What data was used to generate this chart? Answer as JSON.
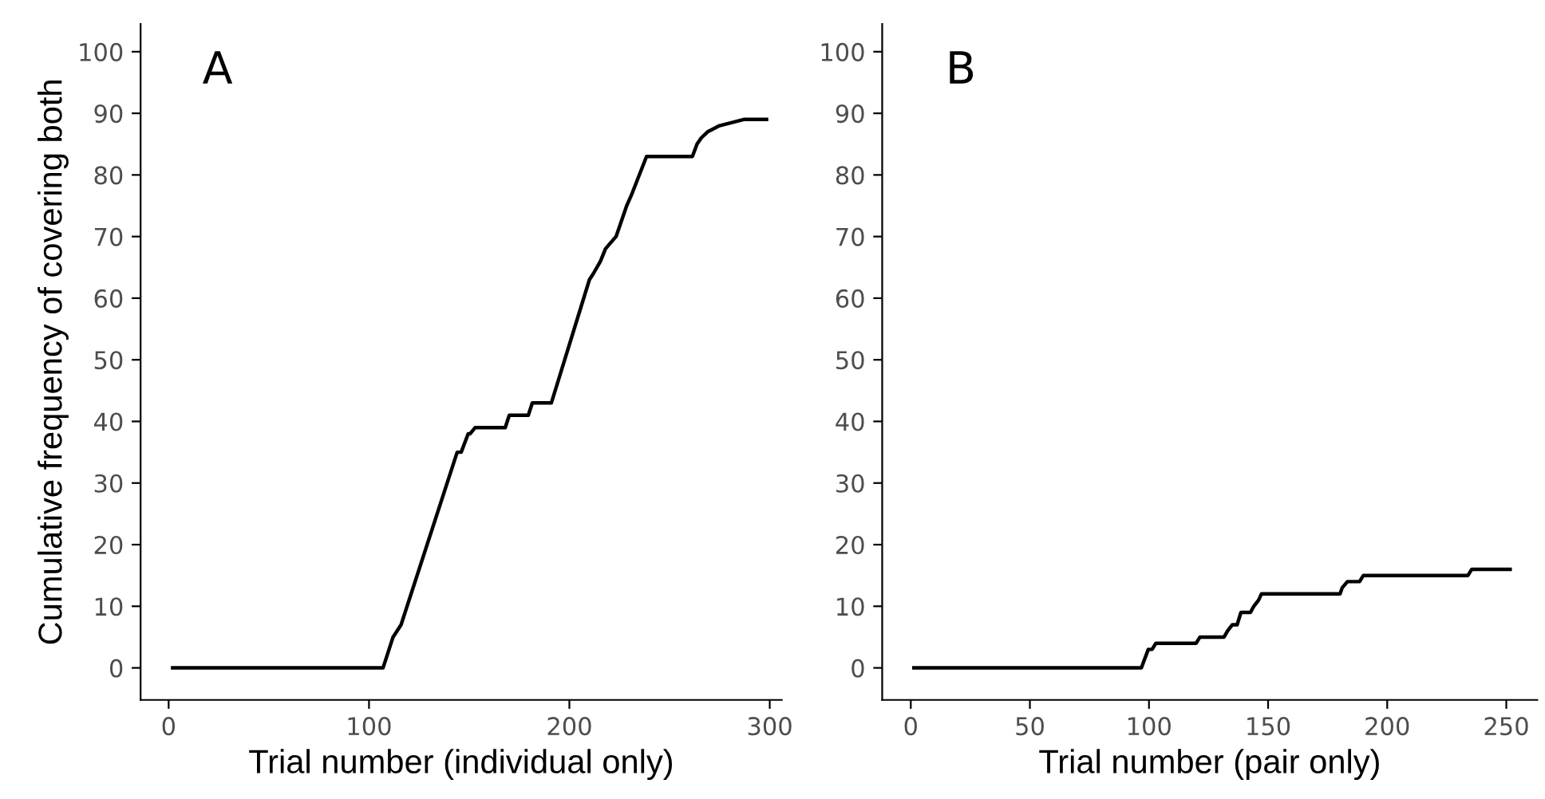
{
  "chart_data": [
    {
      "type": "line",
      "xlabel": "Trial number (individual only)",
      "ylabel": "Cumulative frequency of covering both",
      "annotations": [
        "A"
      ],
      "series": [
        {
          "color": "#000000",
          "x": [
            2,
            107,
            112,
            116,
            144,
            146,
            149.5,
            150.5,
            153,
            168,
            170,
            179.5,
            181.5,
            191,
            210,
            212,
            215.5,
            218,
            220.6,
            223.3,
            228.6,
            231.3,
            238.5,
            261.4,
            263.7,
            265.8,
            269,
            275,
            287,
            298.4
          ],
          "values": [
            0,
            0,
            5,
            7,
            35,
            35,
            38,
            38,
            39,
            39,
            41,
            41,
            43,
            43,
            63,
            64,
            66,
            68,
            69,
            70,
            75,
            77,
            83,
            83,
            85,
            86,
            87,
            88,
            89,
            89
          ]
        }
      ],
      "xlim": [
        -14,
        306
      ],
      "ylim": [
        -5.2,
        104.5
      ],
      "xticks": [
        0,
        100,
        200,
        300
      ],
      "yticks": [
        0,
        10,
        20,
        30,
        40,
        50,
        60,
        70,
        80,
        90,
        100
      ]
    },
    {
      "type": "line",
      "xlabel": "Trial number (pair only)",
      "annotations": [
        "B"
      ],
      "series": [
        {
          "color": "#000000",
          "x": [
            1.3,
            96.8,
            99.7,
            101.3,
            102.9,
            119.8,
            121.4,
            131.5,
            133,
            135,
            137,
            138.6,
            142.6,
            144,
            146,
            147.2,
            180.2,
            181.1,
            183.3,
            188.4,
            190,
            233.9,
            235.5,
            251.6
          ],
          "values": [
            0,
            0,
            3,
            3,
            4,
            4,
            5,
            5,
            6,
            7,
            7,
            9,
            9,
            10,
            11,
            12,
            12,
            13,
            14,
            14,
            15,
            15,
            16,
            16
          ]
        }
      ],
      "xlim": [
        -12,
        263
      ],
      "ylim": [
        -5.2,
        104.5
      ],
      "xticks": [
        0,
        50,
        100,
        150,
        200,
        250
      ],
      "yticks": [
        0,
        10,
        20,
        30,
        40,
        50,
        60,
        70,
        80,
        90,
        100
      ]
    }
  ]
}
